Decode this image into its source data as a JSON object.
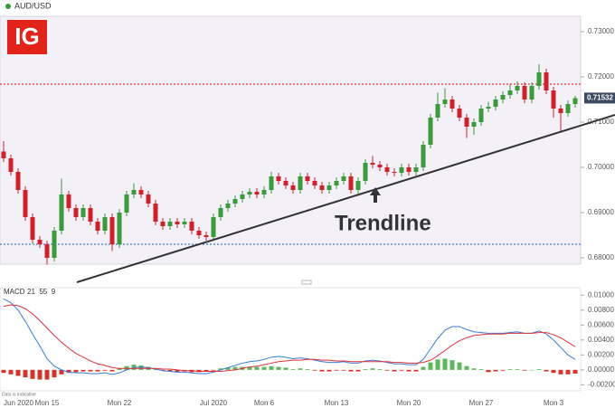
{
  "chart_data": {
    "type": "candlestick",
    "instrument": "AUD/USD",
    "logo": "IG",
    "annotation": "Trendline",
    "up_color": "#3a9a3a",
    "down_color": "#d0212a",
    "ylim": [
      0.6786,
      0.7334
    ],
    "yticks": [
      {
        "value": 0.68,
        "label": "0.68000"
      },
      {
        "value": 0.69,
        "label": "0.69000"
      },
      {
        "value": 0.7,
        "label": "0.70000"
      },
      {
        "value": 0.71,
        "label": "0.71000"
      },
      {
        "value": 0.72,
        "label": "0.72000"
      },
      {
        "value": 0.73,
        "label": "0.73000"
      }
    ],
    "last_price": 0.71532,
    "levels": [
      {
        "value": 0.7184,
        "color": "#e0303a"
      },
      {
        "value": 0.683,
        "color": "#3a7bd5"
      }
    ],
    "categories": [
      "Jun 2020",
      null,
      null,
      null,
      null,
      null,
      "Mon 15",
      null,
      null,
      null,
      null,
      null,
      null,
      null,
      null,
      null,
      "Mon 22",
      null,
      null,
      null,
      null,
      null,
      null,
      null,
      null,
      null,
      null,
      null,
      null,
      "Jul 2020",
      null,
      null,
      null,
      null,
      null,
      null,
      "Mon 6",
      null,
      null,
      null,
      null,
      null,
      null,
      null,
      null,
      null,
      "Mon 13",
      null,
      null,
      null,
      null,
      null,
      null,
      null,
      null,
      null,
      "Mon 20",
      null,
      null,
      null,
      null,
      null,
      null,
      null,
      null,
      null,
      "Mon 27",
      null,
      null,
      null,
      null,
      null,
      null,
      null,
      null,
      null,
      "Mon 3",
      null,
      null,
      null
    ],
    "candles": [
      [
        0.7035,
        0.7058,
        0.7012,
        0.702
      ],
      [
        0.702,
        0.7028,
        0.6982,
        0.699
      ],
      [
        0.699,
        0.6998,
        0.6942,
        0.695
      ],
      [
        0.695,
        0.6958,
        0.6882,
        0.689
      ],
      [
        0.689,
        0.6898,
        0.6832,
        0.684
      ],
      [
        0.684,
        0.6848,
        0.6822,
        0.683
      ],
      [
        0.683,
        0.6838,
        0.6785,
        0.68
      ],
      [
        0.68,
        0.6868,
        0.6792,
        0.686
      ],
      [
        0.686,
        0.6975,
        0.6852,
        0.694
      ],
      [
        0.694,
        0.6948,
        0.6902,
        0.691
      ],
      [
        0.691,
        0.6918,
        0.6882,
        0.689
      ],
      [
        0.689,
        0.6918,
        0.6882,
        0.691
      ],
      [
        0.691,
        0.6918,
        0.6872,
        0.688
      ],
      [
        0.688,
        0.6888,
        0.6852,
        0.686
      ],
      [
        0.686,
        0.6898,
        0.6852,
        0.689
      ],
      [
        0.689,
        0.6898,
        0.6815,
        0.683
      ],
      [
        0.683,
        0.6908,
        0.6822,
        0.69
      ],
      [
        0.69,
        0.6948,
        0.6892,
        0.694
      ],
      [
        0.694,
        0.6965,
        0.6932,
        0.695
      ],
      [
        0.695,
        0.6958,
        0.6932,
        0.694
      ],
      [
        0.694,
        0.6948,
        0.6912,
        0.692
      ],
      [
        0.692,
        0.6928,
        0.6872,
        0.688
      ],
      [
        0.688,
        0.6888,
        0.6862,
        0.687
      ],
      [
        0.687,
        0.6888,
        0.6862,
        0.688
      ],
      [
        0.688,
        0.6888,
        0.6866,
        0.6874
      ],
      [
        0.6874,
        0.6888,
        0.6866,
        0.688
      ],
      [
        0.688,
        0.6888,
        0.6852,
        0.686
      ],
      [
        0.686,
        0.6868,
        0.6842,
        0.685
      ],
      [
        0.685,
        0.6858,
        0.6838,
        0.6846
      ],
      [
        0.6846,
        0.6898,
        0.6838,
        0.689
      ],
      [
        0.689,
        0.6918,
        0.6882,
        0.691
      ],
      [
        0.691,
        0.6928,
        0.6902,
        0.692
      ],
      [
        0.692,
        0.6938,
        0.6912,
        0.693
      ],
      [
        0.693,
        0.6948,
        0.6922,
        0.694
      ],
      [
        0.694,
        0.6954,
        0.6932,
        0.6946
      ],
      [
        0.6946,
        0.6954,
        0.6932,
        0.694
      ],
      [
        0.694,
        0.6958,
        0.6932,
        0.695
      ],
      [
        0.695,
        0.699,
        0.6942,
        0.698
      ],
      [
        0.698,
        0.6988,
        0.6962,
        0.697
      ],
      [
        0.697,
        0.6978,
        0.6952,
        0.696
      ],
      [
        0.696,
        0.6968,
        0.6942,
        0.695
      ],
      [
        0.695,
        0.6988,
        0.6942,
        0.698
      ],
      [
        0.698,
        0.6988,
        0.6962,
        0.697
      ],
      [
        0.697,
        0.6978,
        0.6952,
        0.696
      ],
      [
        0.696,
        0.6968,
        0.6942,
        0.695
      ],
      [
        0.695,
        0.6968,
        0.6942,
        0.696
      ],
      [
        0.696,
        0.6978,
        0.6952,
        0.697
      ],
      [
        0.697,
        0.6988,
        0.6962,
        0.698
      ],
      [
        0.698,
        0.6988,
        0.6942,
        0.695
      ],
      [
        0.695,
        0.6978,
        0.6942,
        0.697
      ],
      [
        0.697,
        0.7018,
        0.6962,
        0.701
      ],
      [
        0.701,
        0.7025,
        0.6998,
        0.7006
      ],
      [
        0.7006,
        0.7014,
        0.6992,
        0.7
      ],
      [
        0.7,
        0.7008,
        0.6982,
        0.699
      ],
      [
        0.699,
        0.6998,
        0.698,
        0.6988
      ],
      [
        0.6988,
        0.7008,
        0.698,
        0.7
      ],
      [
        0.7,
        0.7008,
        0.6982,
        0.699
      ],
      [
        0.699,
        0.7008,
        0.6982,
        0.7
      ],
      [
        0.7,
        0.7058,
        0.6992,
        0.705
      ],
      [
        0.705,
        0.7118,
        0.7042,
        0.711
      ],
      [
        0.711,
        0.7165,
        0.7102,
        0.714
      ],
      [
        0.714,
        0.7175,
        0.7132,
        0.715
      ],
      [
        0.715,
        0.7158,
        0.7122,
        0.713
      ],
      [
        0.713,
        0.7138,
        0.7102,
        0.711
      ],
      [
        0.711,
        0.7118,
        0.7065,
        0.709
      ],
      [
        0.709,
        0.7108,
        0.7072,
        0.71
      ],
      [
        0.71,
        0.7138,
        0.7092,
        0.713
      ],
      [
        0.713,
        0.7145,
        0.7122,
        0.7134
      ],
      [
        0.7134,
        0.7158,
        0.7126,
        0.715
      ],
      [
        0.715,
        0.7168,
        0.7142,
        0.716
      ],
      [
        0.716,
        0.7185,
        0.7152,
        0.717
      ],
      [
        0.717,
        0.719,
        0.7162,
        0.718
      ],
      [
        0.718,
        0.7188,
        0.7142,
        0.715
      ],
      [
        0.715,
        0.7188,
        0.7142,
        0.718
      ],
      [
        0.718,
        0.7228,
        0.7172,
        0.721
      ],
      [
        0.721,
        0.7218,
        0.7162,
        0.717
      ],
      [
        0.717,
        0.7178,
        0.711,
        0.713
      ],
      [
        0.713,
        0.7138,
        0.708,
        0.712
      ],
      [
        0.712,
        0.7148,
        0.7112,
        0.714
      ],
      [
        0.714,
        0.7158,
        0.7132,
        0.7153
      ]
    ],
    "macd": {
      "label": "MACD",
      "params": "21  55  9",
      "note": "Data is indicative",
      "ylim": [
        -0.0028,
        0.011
      ],
      "yticks": [
        {
          "value": -0.002,
          "label": "-0.00200"
        },
        {
          "value": 0,
          "label": "0.00000"
        },
        {
          "value": 0.002,
          "label": "0.00200"
        },
        {
          "value": 0.004,
          "label": "0.00400"
        },
        {
          "value": 0.006,
          "label": "0.00600"
        },
        {
          "value": 0.008,
          "label": "0.00800"
        },
        {
          "value": 0.01,
          "label": "0.01000"
        }
      ],
      "series": [
        {
          "color": "#3a7bd5",
          "values": [
            0.0095,
            0.009,
            0.008,
            0.0065,
            0.0048,
            0.0032,
            0.0015,
            0.0005,
            0.0,
            -0.0003,
            -0.0004,
            -0.0004,
            -0.0005,
            -0.0005,
            -0.0004,
            -0.0006,
            -0.0004,
            0.0,
            0.0003,
            0.0004,
            0.0003,
            0.0001,
            -0.0001,
            -0.0002,
            -0.0003,
            -0.0003,
            -0.0004,
            -0.0005,
            -0.0005,
            -0.0003,
            0.0,
            0.0003,
            0.0006,
            0.0009,
            0.0011,
            0.0012,
            0.0014,
            0.0017,
            0.0018,
            0.0017,
            0.0015,
            0.0016,
            0.0015,
            0.0013,
            0.0011,
            0.001,
            0.001,
            0.0011,
            0.0009,
            0.0009,
            0.0012,
            0.0013,
            0.0012,
            0.001,
            0.0008,
            0.0008,
            0.0007,
            0.0007,
            0.0014,
            0.0028,
            0.0042,
            0.0053,
            0.0058,
            0.0058,
            0.0054,
            0.0051,
            0.005,
            0.0049,
            0.0049,
            0.0049,
            0.005,
            0.0051,
            0.0049,
            0.0049,
            0.0052,
            0.0048,
            0.004,
            0.003,
            0.002,
            0.0014
          ]
        },
        {
          "color": "#e0303a",
          "values": [
            0.0085,
            0.0087,
            0.0086,
            0.0082,
            0.0075,
            0.0066,
            0.0056,
            0.0046,
            0.0037,
            0.0029,
            0.0022,
            0.0017,
            0.0012,
            0.0008,
            0.0006,
            0.0003,
            0.0002,
            0.0002,
            0.0002,
            0.0002,
            0.0002,
            0.0002,
            0.0001,
            0.0001,
            0.0,
            -0.0001,
            -0.0001,
            -0.0002,
            -0.0002,
            -0.0002,
            -0.0002,
            -0.0001,
            0.0,
            0.0002,
            0.0004,
            0.0005,
            0.0007,
            0.0009,
            0.0011,
            0.0012,
            0.0013,
            0.0013,
            0.0014,
            0.0014,
            0.0013,
            0.0013,
            0.0012,
            0.0012,
            0.0011,
            0.0011,
            0.0011,
            0.0011,
            0.0011,
            0.0011,
            0.001,
            0.001,
            0.0009,
            0.0009,
            0.001,
            0.0013,
            0.0019,
            0.0026,
            0.0033,
            0.0039,
            0.0043,
            0.0046,
            0.0047,
            0.0048,
            0.0048,
            0.0048,
            0.0049,
            0.0049,
            0.0049,
            0.0049,
            0.005,
            0.005,
            0.0047,
            0.0043,
            0.0037,
            0.0031
          ]
        }
      ],
      "histogram": {
        "up_color": "#5cb85c",
        "down_color": "#d9342b",
        "values": [
          -0.0004,
          -0.0006,
          -0.0008,
          -0.001,
          -0.0012,
          -0.0013,
          -0.0013,
          -0.001,
          -0.0006,
          -0.0004,
          -0.0003,
          -0.0002,
          -0.0002,
          -0.0002,
          -0.0001,
          -0.0002,
          0.0002,
          0.0005,
          0.0007,
          0.0006,
          0.0004,
          0.0001,
          -0.0001,
          -0.0002,
          -0.0003,
          -0.0002,
          -0.0003,
          -0.0003,
          -0.0002,
          -0.0001,
          0.0002,
          0.0003,
          0.0004,
          0.0004,
          0.0004,
          0.0004,
          0.0004,
          0.0005,
          0.0004,
          0.0003,
          0.0001,
          0.0002,
          0.0001,
          -0.0001,
          -0.0002,
          -0.0002,
          -0.0001,
          -0.0001,
          -0.0002,
          -0.0002,
          0.0001,
          0.0002,
          0.0001,
          -0.0001,
          -0.0002,
          -0.0001,
          -0.0002,
          -0.0002,
          0.0004,
          0.001,
          0.0014,
          0.0015,
          0.0013,
          0.001,
          0.0005,
          0.0002,
          0.0001,
          -0.0003,
          -0.0002,
          -0.0001,
          0.0001,
          0.0001,
          -0.0001,
          0.0,
          0.0001,
          -0.0002,
          -0.0004,
          -0.0006,
          -0.0006,
          -0.0005
        ]
      }
    }
  }
}
